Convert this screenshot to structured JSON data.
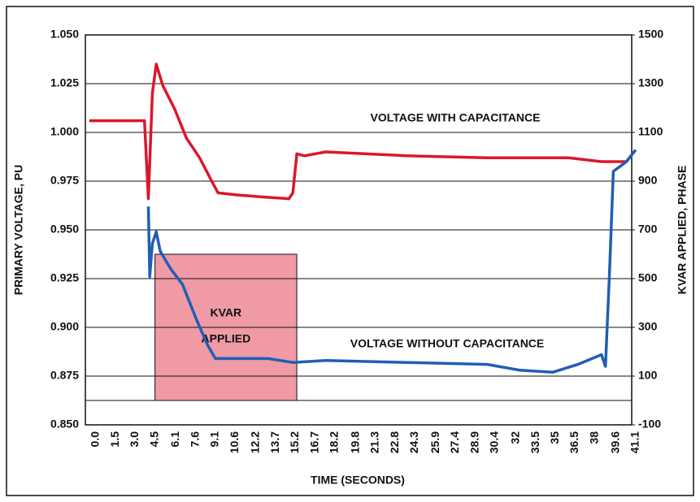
{
  "chart_data": {
    "type": "line",
    "xlabel": "TIME (SECONDS)",
    "ylabel": "PRIMARY VOLTAGE, PU",
    "y2label": "KVAR APPLIED, PHASE",
    "xlim": [
      -0.8,
      40.8
    ],
    "ylim": [
      0.85,
      1.05
    ],
    "y2lim": [
      -100,
      1500
    ],
    "xticks": [
      {
        "value": 0,
        "label": "0.0"
      },
      1.5,
      {
        "value": 3,
        "label": "3.0"
      },
      4.5,
      6.1,
      7.6,
      9.1,
      10.6,
      12.2,
      13.7,
      15.2,
      16.7,
      18.2,
      19.8,
      21.3,
      22.8,
      24.3,
      25.9,
      27.4,
      28.9,
      30.4,
      32.0,
      33.5,
      35.0,
      36.5,
      38.0,
      39.6,
      41.1
    ],
    "yticks": [
      {
        "value": 0.85,
        "label": "0.850"
      },
      {
        "value": 0.875,
        "label": "0.875"
      },
      {
        "value": 0.9,
        "label": "0.900"
      },
      {
        "value": 0.925,
        "label": "0.925"
      },
      {
        "value": 0.95,
        "label": "0.950"
      },
      {
        "value": 0.975,
        "label": "0.975"
      },
      {
        "value": 1.0,
        "label": "1.000"
      },
      {
        "value": 1.025,
        "label": "1.025"
      },
      {
        "value": 1.05,
        "label": "1.050"
      }
    ],
    "y2ticks": [
      -100,
      100,
      300,
      500,
      700,
      900,
      1100,
      1300,
      1500
    ],
    "grid": true,
    "series": [
      {
        "name": "VOLTAGE WITH CAPACITANCE",
        "color": "#d9182d",
        "x": [
          -0.5,
          3.7,
          4.0,
          4.3,
          4.6,
          5.1,
          6.0,
          6.9,
          7.9,
          8.9,
          9.3,
          10.6,
          12.5,
          14.7,
          15.0,
          15.3,
          15.9,
          17.5,
          23.7,
          29.8,
          36.0,
          38.5,
          40.4,
          41.1
        ],
        "values": [
          1.006,
          1.006,
          0.966,
          1.02,
          1.035,
          1.024,
          1.012,
          0.997,
          0.987,
          0.974,
          0.969,
          0.968,
          0.967,
          0.966,
          0.969,
          0.989,
          0.988,
          0.99,
          0.988,
          0.987,
          0.987,
          0.985,
          0.985,
          0.991
        ]
      },
      {
        "name": "VOLTAGE WITHOUT CAPACITANCE",
        "color": "#1f5fb4",
        "x": [
          4.0,
          4.1,
          4.3,
          4.6,
          4.9,
          5.7,
          6.6,
          7.6,
          8.5,
          9.1,
          10.6,
          13.1,
          15.0,
          17.5,
          23.7,
          29.8,
          32.3,
          34.8,
          36.7,
          38.5,
          38.8,
          39.1,
          39.4,
          40.4,
          41.1
        ],
        "values": [
          0.962,
          0.926,
          0.943,
          0.949,
          0.939,
          0.93,
          0.922,
          0.905,
          0.891,
          0.884,
          0.884,
          0.884,
          0.882,
          0.883,
          0.882,
          0.881,
          0.878,
          0.877,
          0.881,
          0.886,
          0.88,
          0.926,
          0.98,
          0.985,
          0.991
        ]
      }
    ],
    "kvar_applied": {
      "label_lines": [
        "KVAR",
        "APPLIED"
      ],
      "x": [
        4.5,
        15.3
      ],
      "value": 600,
      "axis": "y2",
      "color": "#ef9aa5"
    }
  }
}
